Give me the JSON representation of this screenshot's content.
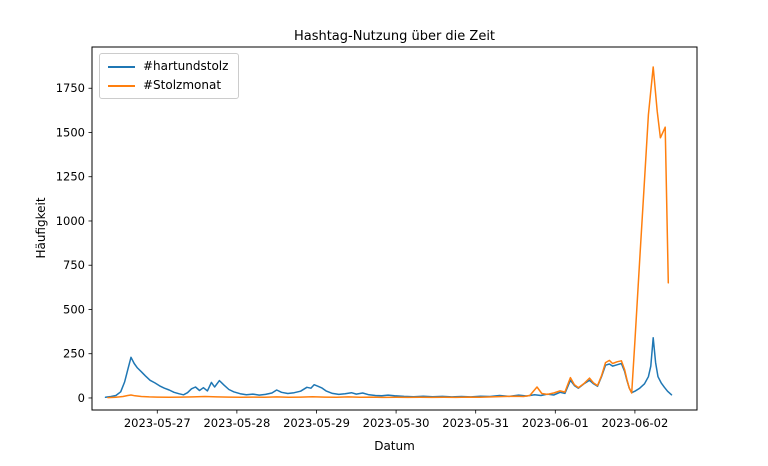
{
  "window": {
    "background": "#ffffff"
  },
  "chart_data": {
    "type": "line",
    "title": "Hashtag-Nutzung über die Zeit",
    "xlabel": "Datum",
    "ylabel": "Häufigkeit",
    "legend_position": "upper-left",
    "grid": false,
    "x_unit": "days since 2023-05-27 00:00",
    "xlim": [
      -0.82,
      6.78
    ],
    "ylim": [
      -68,
      1983
    ],
    "yticks": [
      0,
      250,
      500,
      750,
      1000,
      1250,
      1500,
      1750
    ],
    "xticks": [
      {
        "pos": 0,
        "label": "2023-05-27"
      },
      {
        "pos": 1,
        "label": "2023-05-28"
      },
      {
        "pos": 2,
        "label": "2023-05-29"
      },
      {
        "pos": 3,
        "label": "2023-05-30"
      },
      {
        "pos": 4,
        "label": "2023-05-31"
      },
      {
        "pos": 5,
        "label": "2023-06-01"
      },
      {
        "pos": 6,
        "label": "2023-06-02"
      }
    ],
    "series": [
      {
        "name": "#hartundstolz",
        "color": "#1f77b4",
        "points": [
          [
            -0.65,
            4
          ],
          [
            -0.58,
            8
          ],
          [
            -0.52,
            14
          ],
          [
            -0.46,
            35
          ],
          [
            -0.41,
            90
          ],
          [
            -0.37,
            160
          ],
          [
            -0.33,
            230
          ],
          [
            -0.29,
            195
          ],
          [
            -0.25,
            170
          ],
          [
            -0.2,
            148
          ],
          [
            -0.15,
            125
          ],
          [
            -0.09,
            100
          ],
          [
            -0.03,
            85
          ],
          [
            0.03,
            68
          ],
          [
            0.09,
            55
          ],
          [
            0.15,
            45
          ],
          [
            0.21,
            32
          ],
          [
            0.27,
            24
          ],
          [
            0.33,
            18
          ],
          [
            0.38,
            30
          ],
          [
            0.43,
            52
          ],
          [
            0.48,
            62
          ],
          [
            0.53,
            42
          ],
          [
            0.58,
            58
          ],
          [
            0.63,
            40
          ],
          [
            0.68,
            88
          ],
          [
            0.72,
            62
          ],
          [
            0.78,
            98
          ],
          [
            0.84,
            72
          ],
          [
            0.9,
            48
          ],
          [
            0.96,
            35
          ],
          [
            1.04,
            24
          ],
          [
            1.12,
            18
          ],
          [
            1.2,
            22
          ],
          [
            1.28,
            16
          ],
          [
            1.36,
            20
          ],
          [
            1.44,
            28
          ],
          [
            1.5,
            45
          ],
          [
            1.56,
            32
          ],
          [
            1.64,
            25
          ],
          [
            1.72,
            30
          ],
          [
            1.8,
            38
          ],
          [
            1.88,
            60
          ],
          [
            1.93,
            55
          ],
          [
            1.97,
            75
          ],
          [
            2.02,
            66
          ],
          [
            2.07,
            56
          ],
          [
            2.12,
            40
          ],
          [
            2.2,
            26
          ],
          [
            2.28,
            20
          ],
          [
            2.36,
            24
          ],
          [
            2.44,
            30
          ],
          [
            2.5,
            22
          ],
          [
            2.58,
            28
          ],
          [
            2.66,
            18
          ],
          [
            2.74,
            14
          ],
          [
            2.82,
            12
          ],
          [
            2.9,
            16
          ],
          [
            2.98,
            12
          ],
          [
            3.1,
            9
          ],
          [
            3.22,
            7
          ],
          [
            3.34,
            10
          ],
          [
            3.46,
            7
          ],
          [
            3.58,
            9
          ],
          [
            3.7,
            6
          ],
          [
            3.82,
            8
          ],
          [
            3.94,
            6
          ],
          [
            4.06,
            10
          ],
          [
            4.18,
            8
          ],
          [
            4.3,
            14
          ],
          [
            4.42,
            9
          ],
          [
            4.54,
            16
          ],
          [
            4.64,
            11
          ],
          [
            4.74,
            18
          ],
          [
            4.82,
            14
          ],
          [
            4.9,
            22
          ],
          [
            4.98,
            17
          ],
          [
            5.06,
            32
          ],
          [
            5.12,
            26
          ],
          [
            5.19,
            100
          ],
          [
            5.24,
            70
          ],
          [
            5.29,
            55
          ],
          [
            5.36,
            80
          ],
          [
            5.43,
            100
          ],
          [
            5.48,
            80
          ],
          [
            5.53,
            66
          ],
          [
            5.58,
            120
          ],
          [
            5.63,
            185
          ],
          [
            5.68,
            192
          ],
          [
            5.72,
            180
          ],
          [
            5.78,
            188
          ],
          [
            5.83,
            195
          ],
          [
            5.87,
            150
          ],
          [
            5.9,
            100
          ],
          [
            5.93,
            55
          ],
          [
            5.96,
            30
          ],
          [
            6.0,
            38
          ],
          [
            6.06,
            55
          ],
          [
            6.12,
            80
          ],
          [
            6.17,
            120
          ],
          [
            6.2,
            180
          ],
          [
            6.23,
            340
          ],
          [
            6.26,
            200
          ],
          [
            6.29,
            120
          ],
          [
            6.33,
            85
          ],
          [
            6.37,
            60
          ],
          [
            6.41,
            38
          ],
          [
            6.46,
            18
          ]
        ]
      },
      {
        "name": "#Stolzmonat",
        "color": "#ff7f0e",
        "points": [
          [
            -0.62,
            2
          ],
          [
            -0.52,
            4
          ],
          [
            -0.43,
            8
          ],
          [
            -0.37,
            14
          ],
          [
            -0.33,
            17
          ],
          [
            -0.28,
            12
          ],
          [
            -0.2,
            8
          ],
          [
            -0.1,
            6
          ],
          [
            0.0,
            5
          ],
          [
            0.15,
            4
          ],
          [
            0.3,
            5
          ],
          [
            0.45,
            6
          ],
          [
            0.6,
            8
          ],
          [
            0.75,
            6
          ],
          [
            0.9,
            5
          ],
          [
            1.05,
            4
          ],
          [
            1.2,
            5
          ],
          [
            1.35,
            4
          ],
          [
            1.5,
            6
          ],
          [
            1.65,
            4
          ],
          [
            1.8,
            5
          ],
          [
            1.95,
            7
          ],
          [
            2.1,
            5
          ],
          [
            2.25,
            4
          ],
          [
            2.4,
            6
          ],
          [
            2.55,
            4
          ],
          [
            2.7,
            5
          ],
          [
            2.85,
            3
          ],
          [
            3.0,
            4
          ],
          [
            3.15,
            3
          ],
          [
            3.3,
            4
          ],
          [
            3.45,
            3
          ],
          [
            3.6,
            4
          ],
          [
            3.75,
            3
          ],
          [
            3.9,
            5
          ],
          [
            4.05,
            4
          ],
          [
            4.2,
            6
          ],
          [
            4.35,
            8
          ],
          [
            4.5,
            10
          ],
          [
            4.6,
            8
          ],
          [
            4.68,
            14
          ],
          [
            4.77,
            62
          ],
          [
            4.83,
            25
          ],
          [
            4.9,
            20
          ],
          [
            4.98,
            28
          ],
          [
            5.06,
            40
          ],
          [
            5.12,
            33
          ],
          [
            5.19,
            115
          ],
          [
            5.24,
            75
          ],
          [
            5.29,
            58
          ],
          [
            5.36,
            82
          ],
          [
            5.43,
            112
          ],
          [
            5.48,
            85
          ],
          [
            5.53,
            70
          ],
          [
            5.58,
            125
          ],
          [
            5.63,
            200
          ],
          [
            5.68,
            212
          ],
          [
            5.72,
            195
          ],
          [
            5.78,
            205
          ],
          [
            5.83,
            210
          ],
          [
            5.87,
            160
          ],
          [
            5.9,
            105
          ],
          [
            5.93,
            55
          ],
          [
            5.96,
            28
          ],
          [
            6.0,
            320
          ],
          [
            6.06,
            780
          ],
          [
            6.12,
            1230
          ],
          [
            6.17,
            1600
          ],
          [
            6.23,
            1870
          ],
          [
            6.28,
            1620
          ],
          [
            6.32,
            1470
          ],
          [
            6.38,
            1530
          ],
          [
            6.42,
            650
          ]
        ]
      }
    ]
  }
}
